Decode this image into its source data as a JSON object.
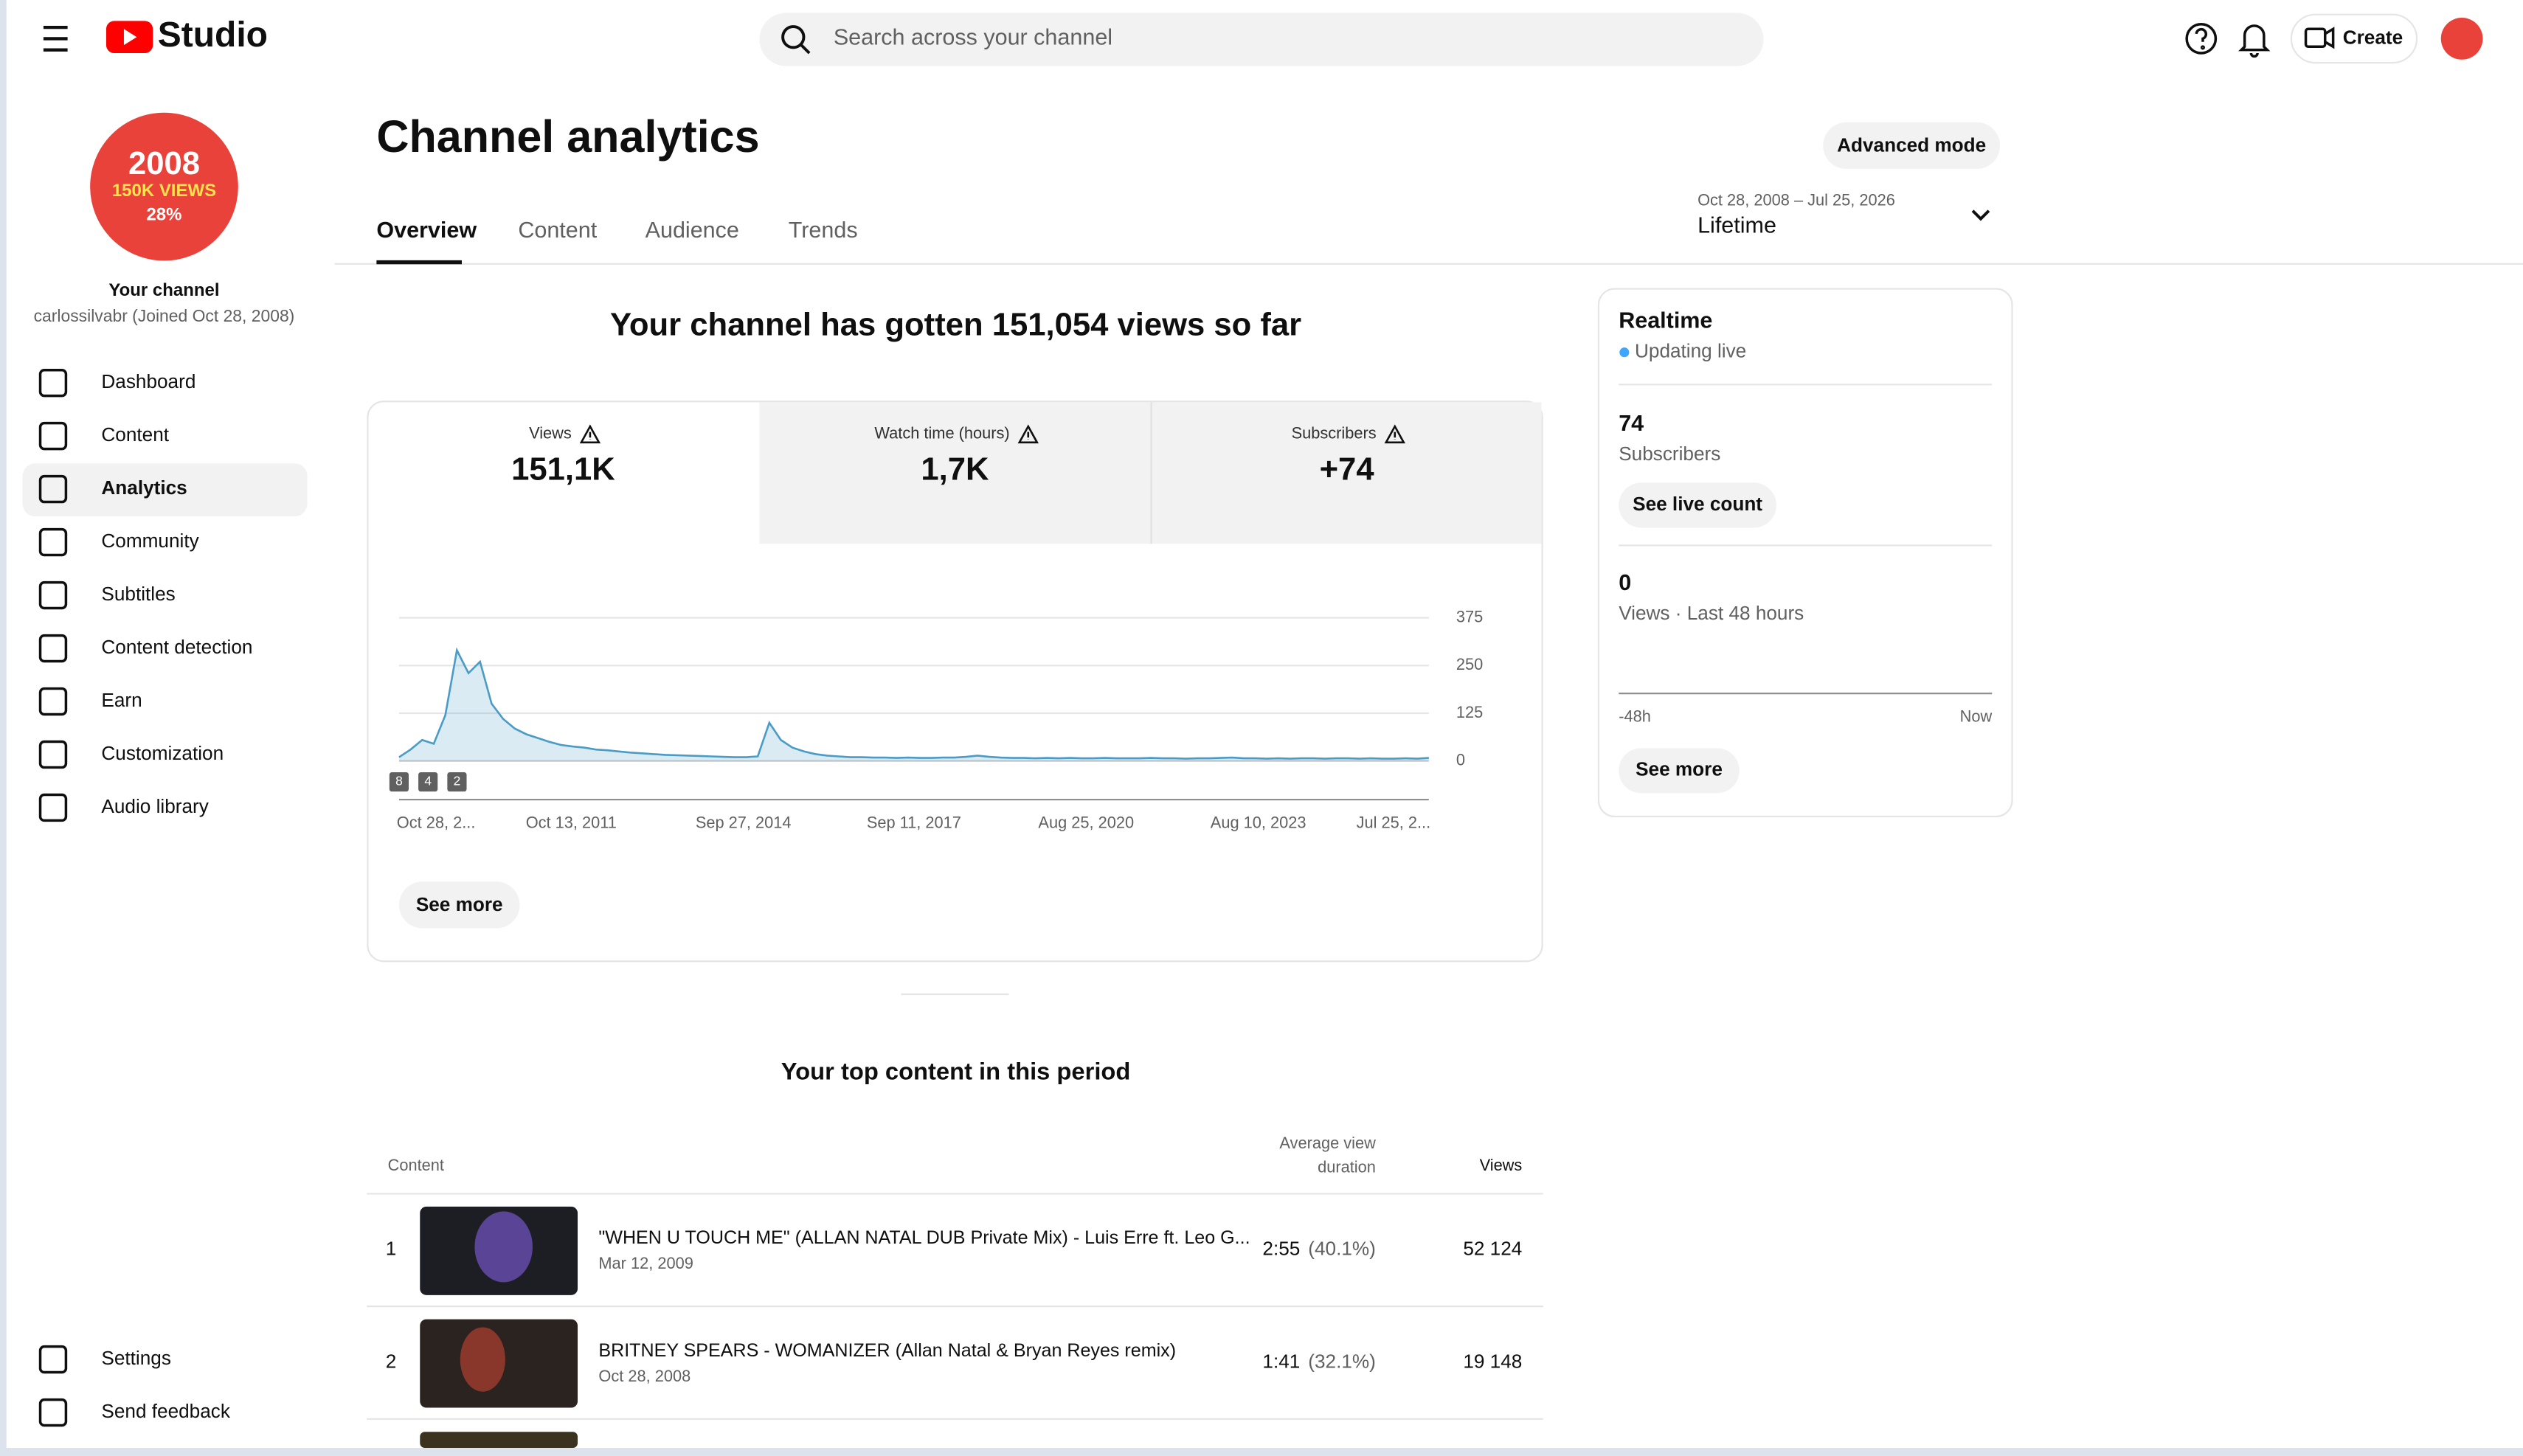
{
  "header": {
    "logo": "Studio",
    "search_placeholder": "Search across your channel",
    "create": "Create"
  },
  "sidebar": {
    "avatar_lines": [
      "2008",
      "150K VIEWS",
      "28%"
    ],
    "channel_label": "Your channel",
    "channel_handle": "carlossilvabr (Joined Oct 28, 2008)",
    "nav": [
      "Dashboard",
      "Content",
      "Analytics",
      "Community",
      "Subtitles",
      "Content detection",
      "Earn",
      "Customization",
      "Audio library"
    ],
    "footer_nav": [
      "Settings",
      "Send feedback"
    ]
  },
  "page": {
    "title": "Channel analytics",
    "advanced_mode": "Advanced mode",
    "tabs": [
      "Overview",
      "Content",
      "Audience",
      "Trends"
    ],
    "date_range": "Oct 28, 2008 – Jul 25, 2026",
    "period": "Lifetime"
  },
  "summary": {
    "headline": "Your channel has gotten 151,054 views so far",
    "metrics": [
      {
        "label": "Views",
        "value": "151,1K"
      },
      {
        "label": "Watch time (hours)",
        "value": "1,7K"
      },
      {
        "label": "Subscribers",
        "value": "+74"
      }
    ],
    "see_more": "See more"
  },
  "chart_data": {
    "type": "line",
    "color": "#4a9cc6",
    "ylim": [
      0,
      375
    ],
    "yticks": [
      0,
      125,
      250,
      375
    ],
    "x_labels": [
      "Oct 28, 2...",
      "Oct 13, 2011",
      "Sep 27, 2014",
      "Sep 11, 2017",
      "Aug 25, 2020",
      "Aug 10, 2023",
      "Jul 25, 2..."
    ],
    "markers": [
      "8",
      "4",
      "2"
    ],
    "values": [
      10,
      30,
      55,
      45,
      120,
      290,
      230,
      260,
      150,
      110,
      85,
      70,
      60,
      50,
      42,
      38,
      35,
      30,
      28,
      25,
      22,
      20,
      18,
      16,
      15,
      14,
      13,
      12,
      11,
      10,
      10,
      12,
      100,
      55,
      35,
      25,
      18,
      14,
      12,
      10,
      10,
      9,
      9,
      8,
      9,
      8,
      8,
      9,
      9,
      11,
      14,
      11,
      9,
      8,
      8,
      7,
      8,
      7,
      8,
      7,
      7,
      8,
      7,
      7,
      7,
      8,
      7,
      7,
      6,
      7,
      7,
      8,
      9,
      7,
      7,
      6,
      7,
      6,
      7,
      7,
      6,
      7,
      7,
      6,
      7,
      6,
      6,
      7,
      6,
      8
    ]
  },
  "realtime": {
    "title": "Realtime",
    "status": "Updating live",
    "subscribers": "74",
    "subscribers_label": "Subscribers",
    "live_count": "See live count",
    "views": "0",
    "views_label": "Views · Last 48 hours",
    "axis_start": "-48h",
    "axis_end": "Now",
    "see_more": "See more"
  },
  "top_content": {
    "title": "Your top content in this period",
    "columns": [
      "Content",
      "Average view duration",
      "Views"
    ],
    "rows": [
      {
        "rank": 1,
        "title": "\"WHEN U TOUCH ME\" (ALLAN NATAL DUB Private Mix) - Luis Erre ft. Leo G...",
        "date": "Mar 12, 2009",
        "duration": "2:55",
        "percent": "(40.1%)",
        "views": "52 124"
      },
      {
        "rank": 2,
        "title": "BRITNEY SPEARS - WOMANIZER (Allan Natal & Bryan Reyes remix)",
        "date": "Oct 28, 2008",
        "duration": "1:41",
        "percent": "(32.1%)",
        "views": "19 148"
      }
    ]
  }
}
